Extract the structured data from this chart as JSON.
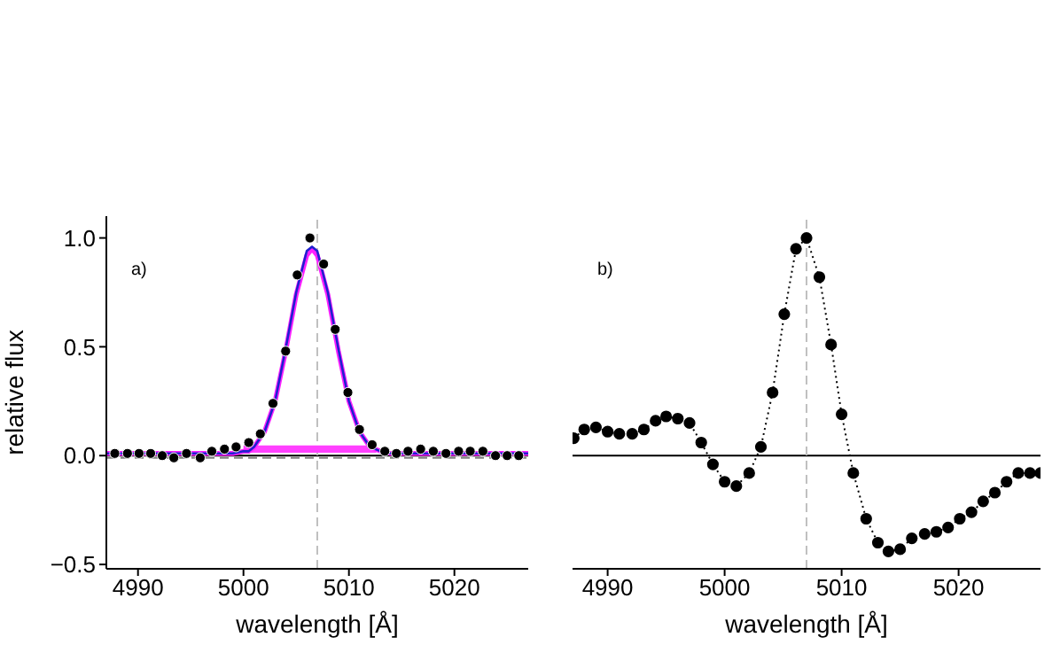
{
  "chart_data": [
    {
      "type": "scatter",
      "xlabel": "wavelength [Å]",
      "ylabel": "relative flux",
      "annotations": [
        "a)"
      ],
      "xlim": [
        4987,
        5027
      ],
      "xticks": [
        4990,
        5000,
        5010,
        5020
      ],
      "ylim": [
        -0.52,
        1.1
      ],
      "yticks": [
        {
          "value": -0.5,
          "label": "−0.5"
        },
        {
          "value": 0,
          "label": "0.0"
        },
        {
          "value": 0.5,
          "label": "0.5"
        },
        {
          "value": 1,
          "label": "1.0"
        }
      ],
      "ref_lines": [
        {
          "axis": "y",
          "value": 0,
          "color": "#000000",
          "line_style": "solid"
        },
        {
          "axis": "y",
          "value": -0.01,
          "color": "#808080",
          "line_style": "dashed"
        },
        {
          "axis": "x",
          "value": 5007,
          "color": "#c0c0c0",
          "line_style": "dashed"
        }
      ],
      "series": [
        {
          "color": "#000000",
          "marker": "circle",
          "x": [
            4987.8,
            4989.0,
            4990.1,
            4991.2,
            4992.3,
            4993.4,
            4994.6,
            4995.9,
            4997.0,
            4998.2,
            4999.3,
            5000.5,
            5001.6,
            5002.8,
            5004.0,
            5005.1,
            5006.3,
            5007.6,
            5008.7,
            5009.9,
            5011.0,
            5012.2,
            5013.4,
            5014.5,
            5015.6,
            5016.8,
            5018.0,
            5019.2,
            5020.4,
            5021.5,
            5022.7,
            5023.9,
            5025.0,
            5026.1
          ],
          "values": [
            0.01,
            0.01,
            0.01,
            0.01,
            0.0,
            -0.01,
            0.01,
            -0.01,
            0.02,
            0.03,
            0.04,
            0.06,
            0.1,
            0.24,
            0.48,
            0.83,
            1.0,
            0.88,
            0.58,
            0.29,
            0.12,
            0.05,
            0.02,
            0.01,
            0.02,
            0.03,
            0.02,
            0.01,
            0.02,
            0.02,
            0.02,
            0.0,
            0.0,
            0.0
          ]
        },
        {
          "type": "line",
          "color": "#ff40ff",
          "marker": "none",
          "line_style": "solid",
          "x": [
            5000,
            5012.6
          ],
          "values": [
            0.03,
            0.03
          ]
        },
        {
          "type": "line",
          "color": "#ff20ff",
          "marker": "none",
          "line_style": "solid",
          "x": [
            4987,
            4995,
            4999,
            5000,
            5000.5,
            5001,
            5002,
            5003,
            5004,
            5005,
            5006,
            5006.5,
            5007,
            5008,
            5009,
            5010,
            5011,
            5012,
            5012.5,
            5013,
            5014,
            5027
          ],
          "values": [
            0.01,
            0.01,
            0.01,
            0.02,
            0.02,
            0.04,
            0.11,
            0.25,
            0.48,
            0.74,
            0.92,
            0.95,
            0.92,
            0.74,
            0.48,
            0.25,
            0.11,
            0.04,
            0.03,
            0.02,
            0.01,
            0.01
          ]
        },
        {
          "type": "line",
          "color": "#2020d0",
          "marker": "none",
          "line_style": "solid",
          "x": [
            4987,
            4995,
            4999,
            5000,
            5000.5,
            5001,
            5002,
            5003,
            5004,
            5005,
            5006,
            5006.5,
            5007,
            5008,
            5009,
            5010,
            5011,
            5012,
            5012.5,
            5013,
            5014,
            5027
          ],
          "values": [
            0.01,
            0.01,
            0.01,
            0.02,
            0.02,
            0.04,
            0.11,
            0.25,
            0.49,
            0.75,
            0.94,
            0.96,
            0.94,
            0.75,
            0.49,
            0.25,
            0.11,
            0.04,
            0.03,
            0.02,
            0.01,
            0.01
          ]
        }
      ]
    },
    {
      "type": "line",
      "xlabel": "wavelength [Å]",
      "annotations": [
        "b)"
      ],
      "tick_labels": "x",
      "xlim": [
        4987,
        5027
      ],
      "xticks": [
        4990,
        5000,
        5010,
        5020
      ],
      "ylim": [
        -0.52,
        1.1
      ],
      "yticks": [
        {
          "value": -0.5,
          "label": null
        },
        {
          "value": 0,
          "label": null
        },
        {
          "value": 0.5,
          "label": null
        },
        {
          "value": 1,
          "label": null
        }
      ],
      "ref_lines": [
        {
          "axis": "y",
          "value": 0,
          "color": "#000000",
          "line_style": "solid"
        },
        {
          "axis": "x",
          "value": 5007,
          "color": "#c0c0c0",
          "line_style": "dashed"
        }
      ],
      "series": [
        {
          "color": "#000000",
          "marker": "circle",
          "line_style": "dotted",
          "x": [
            4987.1,
            4988.0,
            4989.0,
            4990.0,
            4991.0,
            4992.1,
            4993.1,
            4994.1,
            4995.0,
            4996.0,
            4997.0,
            4998.0,
            4999.0,
            5000.0,
            5001.0,
            5002.1,
            5003.1,
            5004.1,
            5005.1,
            5006.1,
            5007.0,
            5008.1,
            5009.1,
            5010.0,
            5011.0,
            5012.1,
            5013.1,
            5014.0,
            5015.0,
            5016.0,
            5017.1,
            5018.1,
            5019.1,
            5020.1,
            5021.1,
            5022.1,
            5023.1,
            5024.1,
            5025.1,
            5026.1,
            5027.0
          ],
          "values": [
            0.08,
            0.12,
            0.13,
            0.11,
            0.1,
            0.1,
            0.12,
            0.16,
            0.18,
            0.17,
            0.15,
            0.06,
            -0.04,
            -0.12,
            -0.14,
            -0.08,
            0.04,
            0.29,
            0.65,
            0.95,
            1.0,
            0.82,
            0.51,
            0.19,
            -0.08,
            -0.29,
            -0.4,
            -0.44,
            -0.43,
            -0.38,
            -0.36,
            -0.35,
            -0.33,
            -0.29,
            -0.26,
            -0.21,
            -0.17,
            -0.12,
            -0.08,
            -0.08,
            -0.08
          ]
        }
      ]
    }
  ]
}
